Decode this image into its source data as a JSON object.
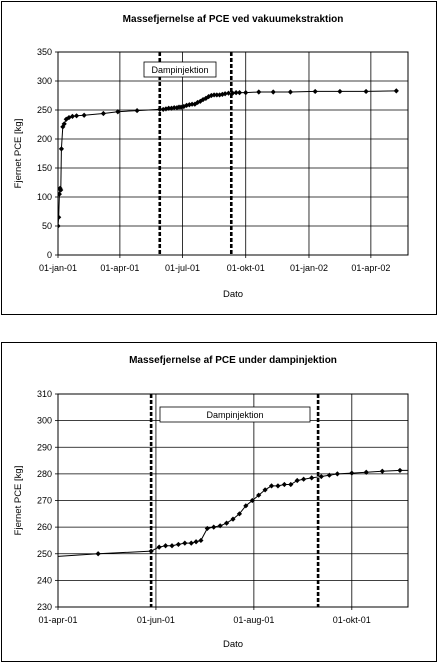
{
  "chart_data": [
    {
      "type": "scatter",
      "title": "Massefjernelse af PCE ved vakuumekstraktion",
      "xlabel": "Dato",
      "ylabel": "Fjernet PCE [kg]",
      "ylim": [
        0,
        350
      ],
      "yticks": [
        0,
        50,
        100,
        150,
        200,
        250,
        300,
        350
      ],
      "xlim": [
        "2001-01-01",
        "2002-05-25"
      ],
      "xticks": [
        "2001-01-01",
        "2001-04-01",
        "2001-07-01",
        "2001-10-01",
        "2002-01-01",
        "2002-04-01"
      ],
      "xtick_labels": [
        "01-jan-01",
        "01-apr-01",
        "01-jul-01",
        "01-okt-01",
        "01-jan-02",
        "01-apr-02"
      ],
      "grid": true,
      "annotation": "Dampinjektion",
      "vlines": [
        "2001-05-29",
        "2001-09-10"
      ],
      "series": [
        {
          "marker": "diamond",
          "x": [
            "2001-01-01",
            "2001-01-02",
            "2001-01-03",
            "2001-01-04",
            "2001-01-05",
            "2001-01-06",
            "2001-01-08",
            "2001-01-10",
            "2001-01-13",
            "2001-01-17",
            "2001-01-22",
            "2001-01-28",
            "2001-02-08",
            "2001-03-08",
            "2001-03-29",
            "2001-04-26",
            "2001-05-29",
            "2001-06-03",
            "2001-06-07",
            "2001-06-11",
            "2001-06-15",
            "2001-06-19",
            "2001-06-23",
            "2001-06-26",
            "2001-06-29",
            "2001-07-03",
            "2001-07-07",
            "2001-07-11",
            "2001-07-15",
            "2001-07-19",
            "2001-07-23",
            "2001-07-27",
            "2001-07-31",
            "2001-08-04",
            "2001-08-08",
            "2001-08-12",
            "2001-08-16",
            "2001-08-20",
            "2001-08-24",
            "2001-08-28",
            "2001-09-01",
            "2001-09-06",
            "2001-09-12",
            "2001-09-17",
            "2001-09-22",
            "2001-10-01",
            "2001-10-20",
            "2001-11-10",
            "2001-12-05",
            "2002-01-10",
            "2002-02-15",
            "2002-03-25",
            "2002-05-08"
          ],
          "y": [
            50,
            65,
            105,
            115,
            112,
            183,
            221,
            226,
            234,
            237,
            239,
            240,
            241,
            244,
            247,
            249,
            251,
            251,
            252,
            253,
            253,
            254,
            254,
            255,
            255,
            256,
            258,
            259,
            260,
            260,
            263,
            265,
            268,
            270,
            273,
            275,
            276,
            276,
            276,
            277,
            278,
            279,
            279,
            280,
            280,
            280,
            281,
            281,
            281,
            282,
            282,
            282,
            283
          ]
        }
      ]
    },
    {
      "type": "scatter",
      "title": "Massefjernelse af PCE under dampinjektion",
      "xlabel": "Dato",
      "ylabel": "Fjernet PCE [kg]",
      "ylim": [
        230,
        310
      ],
      "yticks": [
        230,
        240,
        250,
        260,
        270,
        280,
        290,
        300,
        310
      ],
      "xlim": [
        "2001-04-01",
        "2001-11-05"
      ],
      "xticks": [
        "2001-04-01",
        "2001-06-01",
        "2001-08-01",
        "2001-10-01"
      ],
      "xtick_labels": [
        "01-apr-01",
        "01-jun-01",
        "01-aug-01",
        "01-okt-01"
      ],
      "grid": true,
      "annotation": "Dampinjektion",
      "vlines": [
        "2001-05-29",
        "2001-09-10"
      ],
      "series": [
        {
          "marker": "diamond",
          "x": [
            "2001-04-26",
            "2001-05-29",
            "2001-06-03",
            "2001-06-07",
            "2001-06-11",
            "2001-06-15",
            "2001-06-19",
            "2001-06-23",
            "2001-06-26",
            "2001-06-29",
            "2001-07-03",
            "2001-07-07",
            "2001-07-11",
            "2001-07-15",
            "2001-07-19",
            "2001-07-23",
            "2001-07-27",
            "2001-07-31",
            "2001-08-04",
            "2001-08-08",
            "2001-08-12",
            "2001-08-16",
            "2001-08-20",
            "2001-08-24",
            "2001-08-28",
            "2001-09-01",
            "2001-09-06",
            "2001-09-12",
            "2001-09-17",
            "2001-09-22",
            "2001-10-01",
            "2001-10-10",
            "2001-10-20",
            "2001-10-31"
          ],
          "y": [
            250,
            251,
            252.5,
            253,
            253,
            253.5,
            254,
            254,
            254.5,
            255,
            259.5,
            260,
            260.5,
            261.5,
            263,
            265,
            268,
            270,
            272,
            274,
            275.5,
            275.5,
            276,
            276,
            277.5,
            278,
            278.5,
            279,
            279.5,
            280,
            280.3,
            280.6,
            281,
            281.3
          ]
        }
      ]
    }
  ]
}
